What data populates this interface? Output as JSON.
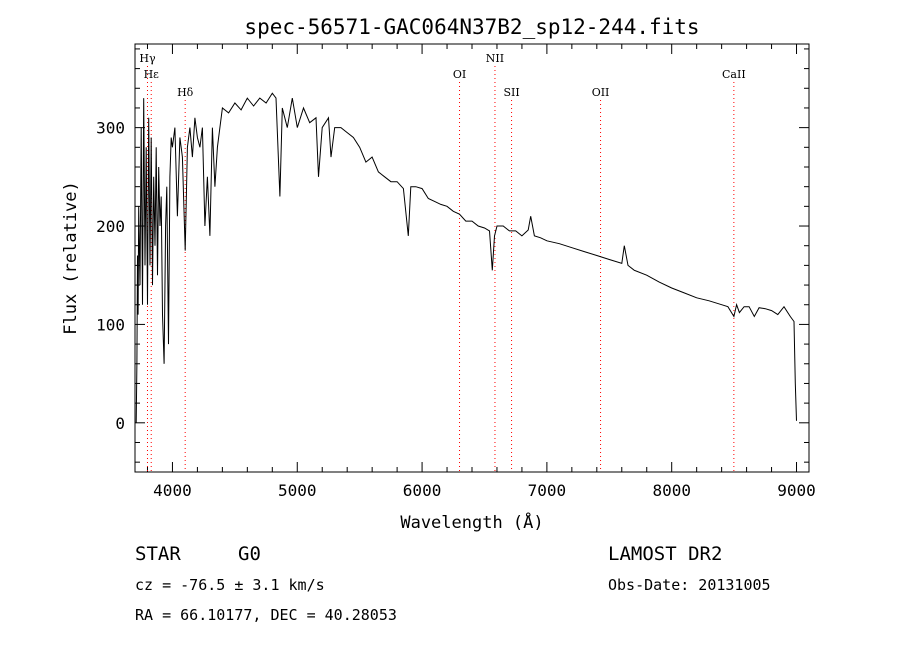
{
  "chart_data": {
    "type": "line",
    "title": "spec-56571-GAC064N37B2_sp12-244.fits",
    "xlabel": "Wavelength (Å)",
    "ylabel": "Flux (relative)",
    "xlim": [
      3700,
      9100
    ],
    "ylim": [
      -50,
      385
    ],
    "xticks": [
      4000,
      5000,
      6000,
      7000,
      8000,
      9000
    ],
    "yticks": [
      0,
      100,
      200,
      300
    ],
    "line_color": "#000000",
    "marker_color": "#ff0000",
    "lines": [
      {
        "name": "Hγ",
        "x": 3800
      },
      {
        "name": "Hε",
        "x": 3830
      },
      {
        "name": "Hδ",
        "x": 4102
      },
      {
        "name": "OI",
        "x": 6300
      },
      {
        "name": "NII",
        "x": 6584
      },
      {
        "name": "SII",
        "x": 6717
      },
      {
        "name": "OII",
        "x": 7430
      },
      {
        "name": "CaII",
        "x": 8498
      }
    ],
    "spectrum": {
      "x": [
        3710,
        3715,
        3720,
        3725,
        3730,
        3740,
        3750,
        3760,
        3770,
        3780,
        3790,
        3800,
        3810,
        3820,
        3830,
        3840,
        3850,
        3860,
        3870,
        3880,
        3890,
        3900,
        3910,
        3920,
        3933,
        3945,
        3955,
        3968,
        3980,
        3990,
        4000,
        4020,
        4040,
        4060,
        4080,
        4102,
        4120,
        4140,
        4160,
        4180,
        4200,
        4220,
        4240,
        4260,
        4280,
        4300,
        4320,
        4340,
        4360,
        4380,
        4400,
        4450,
        4500,
        4550,
        4600,
        4650,
        4700,
        4750,
        4800,
        4830,
        4861,
        4880,
        4920,
        4960,
        5000,
        5050,
        5100,
        5150,
        5170,
        5200,
        5250,
        5270,
        5300,
        5350,
        5400,
        5450,
        5500,
        5550,
        5600,
        5650,
        5700,
        5750,
        5800,
        5850,
        5890,
        5910,
        5950,
        6000,
        6050,
        6100,
        6150,
        6200,
        6250,
        6300,
        6350,
        6400,
        6450,
        6500,
        6540,
        6563,
        6580,
        6600,
        6650,
        6700,
        6750,
        6800,
        6850,
        6870,
        6900,
        6950,
        7000,
        7100,
        7200,
        7300,
        7400,
        7500,
        7600,
        7620,
        7650,
        7700,
        7800,
        7900,
        8000,
        8100,
        8200,
        8300,
        8400,
        8450,
        8498,
        8520,
        8542,
        8580,
        8620,
        8662,
        8700,
        8750,
        8800,
        8850,
        8900,
        8950,
        8980,
        8990,
        9000
      ],
      "flux": [
        0,
        60,
        170,
        110,
        220,
        140,
        300,
        120,
        330,
        160,
        280,
        120,
        310,
        160,
        290,
        140,
        250,
        180,
        280,
        150,
        260,
        200,
        230,
        110,
        60,
        200,
        240,
        80,
        250,
        290,
        280,
        300,
        210,
        290,
        270,
        175,
        280,
        300,
        270,
        310,
        290,
        280,
        300,
        200,
        250,
        190,
        300,
        240,
        280,
        300,
        320,
        315,
        325,
        318,
        330,
        322,
        330,
        325,
        335,
        330,
        230,
        320,
        300,
        330,
        300,
        320,
        305,
        310,
        250,
        300,
        310,
        270,
        300,
        300,
        295,
        290,
        280,
        265,
        270,
        255,
        250,
        245,
        245,
        238,
        190,
        240,
        240,
        238,
        228,
        225,
        222,
        220,
        215,
        212,
        205,
        205,
        200,
        198,
        195,
        155,
        190,
        200,
        200,
        195,
        195,
        190,
        196,
        210,
        190,
        188,
        185,
        182,
        178,
        174,
        170,
        166,
        162,
        180,
        160,
        155,
        150,
        143,
        137,
        132,
        127,
        124,
        120,
        118,
        108,
        120,
        112,
        118,
        118,
        108,
        117,
        116,
        114,
        110,
        118,
        108,
        103,
        40,
        2
      ]
    }
  },
  "footer": {
    "class_label": "STAR",
    "subclass": "G0",
    "survey": "LAMOST DR2",
    "cz": "cz = -76.5 ± 3.1 km/s",
    "obs_date": "Obs-Date: 20131005",
    "coords": "RA =  66.10177, DEC =  40.28053"
  }
}
